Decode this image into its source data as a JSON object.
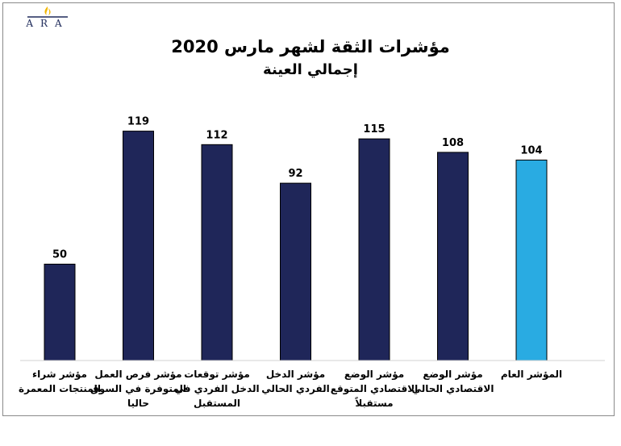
{
  "logo": {
    "text": "ARA"
  },
  "chart_data": {
    "type": "bar",
    "title": "مؤشرات الثقة لشهر مارس 2020",
    "subtitle": "إجمالي العينة",
    "categories": [
      [
        "مؤشر شراء",
        "المنتجات المعمرة"
      ],
      [
        "مؤشر فرص العمل",
        "المتوفرة في السوق",
        "حاليا"
      ],
      [
        "مؤشر توقعات",
        "الدخل الفردي في",
        "المستقبل"
      ],
      [
        "مؤشر الدخل",
        "الفردي الحالي"
      ],
      [
        "مؤشر الوضع",
        "الاقتصادي المتوقع",
        "مستقبلاً"
      ],
      [
        "مؤشر الوضع",
        "الاقتصادي الحالي"
      ],
      [
        "المؤشر العام"
      ]
    ],
    "values": [
      50,
      119,
      112,
      92,
      115,
      108,
      104
    ],
    "data_labels": [
      "50",
      "119",
      "112",
      "92",
      "115",
      "108",
      "104"
    ],
    "colors": [
      "#1f2659",
      "#1f2659",
      "#1f2659",
      "#1f2659",
      "#1f2659",
      "#1f2659",
      "#29abe2"
    ],
    "bar_outline": "#000000",
    "ylim": [
      0,
      140
    ],
    "grid": false,
    "legend": "none"
  }
}
